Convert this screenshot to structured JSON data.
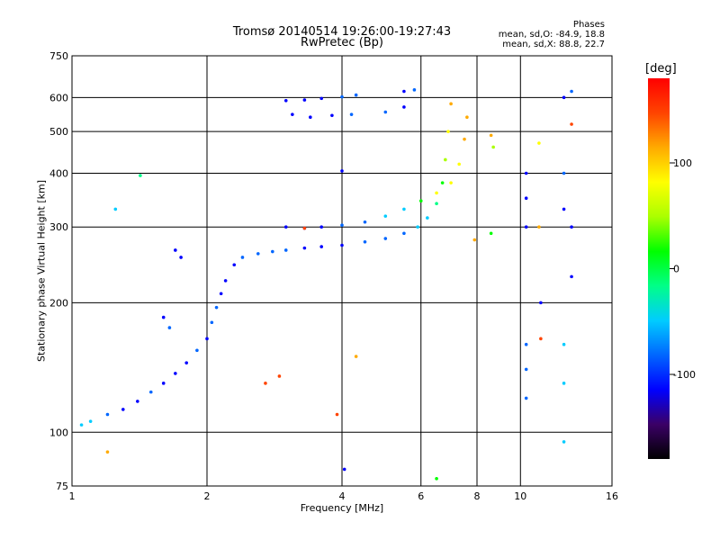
{
  "header": {
    "title": "Tromsø 20140514 19:26:00-19:27:43",
    "subtitle": "RwPretec (Bp)"
  },
  "phases": {
    "heading": "Phases",
    "line_o": "mean, sd,O: -84.9, 18.8",
    "line_x": "mean, sd,X: 88.8, 22.7"
  },
  "colorbar": {
    "label": "[deg]",
    "ticks": [
      "100",
      "0",
      "-100"
    ],
    "tick_values": [
      100,
      0,
      -100
    ],
    "range": [
      -180,
      180
    ],
    "colors": [
      "#000000",
      "#3b0066",
      "#0000ff",
      "#0066ff",
      "#00ccff",
      "#00ff88",
      "#00ff00",
      "#aaff00",
      "#ffff00",
      "#ffaa00",
      "#ff4400",
      "#ff0000"
    ]
  },
  "chart_data": {
    "type": "scatter",
    "title": "Tromsø 20140514 19:26:00-19:27:43",
    "subtitle": "RwPretec (Bp)",
    "xlabel": "Frequency [MHz]",
    "ylabel": "Stationary phase Virtual Height [km]",
    "xscale": "log",
    "yscale": "log",
    "xlim": [
      1,
      16
    ],
    "ylim": [
      75,
      750
    ],
    "xticks": [
      {
        "v": 1,
        "label": "1"
      },
      {
        "v": 2,
        "label": "2"
      },
      {
        "v": 4,
        "label": "4"
      },
      {
        "v": 6,
        "label": "6"
      },
      {
        "v": 8,
        "label": "8"
      },
      {
        "v": 10,
        "label": "10"
      },
      {
        "v": 16,
        "label": "16"
      }
    ],
    "yticks": [
      {
        "v": 75,
        "label": "75"
      },
      {
        "v": 100,
        "label": "100"
      },
      {
        "v": 200,
        "label": "200"
      },
      {
        "v": 300,
        "label": "300"
      },
      {
        "v": 400,
        "label": "400"
      },
      {
        "v": 500,
        "label": "500"
      },
      {
        "v": 600,
        "label": "600"
      },
      {
        "v": 750,
        "label": "750"
      }
    ],
    "grid": true,
    "color_scale": "phase [deg]",
    "series": [
      {
        "points": [
          [
            1.05,
            104,
            -60
          ],
          [
            1.1,
            106,
            -40
          ],
          [
            1.2,
            110,
            -90
          ],
          [
            1.3,
            113,
            -110
          ],
          [
            1.4,
            118,
            -100
          ],
          [
            1.5,
            124,
            -95
          ],
          [
            1.6,
            130,
            -100
          ],
          [
            1.7,
            137,
            -110
          ],
          [
            1.8,
            145,
            -100
          ],
          [
            1.9,
            155,
            -95
          ],
          [
            2.0,
            165,
            -100
          ],
          [
            2.05,
            180,
            -90
          ],
          [
            2.1,
            195,
            -95
          ],
          [
            2.15,
            210,
            -100
          ],
          [
            2.2,
            225,
            -105
          ],
          [
            2.3,
            245,
            -100
          ],
          [
            2.4,
            255,
            -90
          ],
          [
            2.6,
            260,
            -85
          ],
          [
            2.8,
            263,
            -80
          ],
          [
            3.0,
            265,
            -95
          ],
          [
            3.3,
            268,
            -100
          ],
          [
            3.6,
            270,
            -110
          ],
          [
            4.0,
            272,
            -100
          ],
          [
            4.5,
            277,
            -90
          ],
          [
            5.0,
            282,
            -80
          ],
          [
            5.5,
            290,
            -70
          ],
          [
            5.9,
            300,
            -60
          ],
          [
            6.2,
            315,
            -40
          ],
          [
            6.5,
            340,
            -10
          ],
          [
            6.7,
            380,
            30
          ],
          [
            6.8,
            430,
            60
          ],
          [
            6.9,
            500,
            90
          ],
          [
            7.0,
            580,
            100
          ]
        ]
      },
      {
        "points": [
          [
            3.0,
            300,
            -120
          ],
          [
            3.3,
            298,
            -110
          ],
          [
            3.6,
            300,
            -100
          ],
          [
            4.0,
            303,
            -90
          ],
          [
            4.5,
            308,
            -80
          ],
          [
            5.0,
            318,
            -60
          ],
          [
            5.5,
            330,
            -40
          ],
          [
            6.0,
            345,
            20
          ],
          [
            6.5,
            360,
            70
          ],
          [
            7.0,
            380,
            90
          ],
          [
            7.3,
            420,
            95
          ],
          [
            7.5,
            480,
            100
          ],
          [
            7.6,
            540,
            110
          ]
        ]
      },
      {
        "points": [
          [
            3.0,
            590,
            -110
          ],
          [
            3.3,
            592,
            -105
          ],
          [
            3.6,
            597,
            -100
          ],
          [
            4.0,
            602,
            -95
          ],
          [
            4.3,
            608,
            -90
          ],
          [
            5.5,
            620,
            -100
          ],
          [
            5.8,
            625,
            -95
          ]
        ]
      },
      {
        "points": [
          [
            3.1,
            548,
            -100
          ],
          [
            3.4,
            540,
            -110
          ],
          [
            3.8,
            545,
            -100
          ],
          [
            4.2,
            548,
            -90
          ],
          [
            5.0,
            555,
            -80
          ],
          [
            5.5,
            570,
            -100
          ]
        ]
      },
      {
        "points": [
          [
            1.2,
            90,
            130
          ],
          [
            1.25,
            330,
            -60
          ],
          [
            1.42,
            395,
            -30
          ],
          [
            1.6,
            185,
            -100
          ],
          [
            1.65,
            175,
            -90
          ],
          [
            1.7,
            265,
            -100
          ],
          [
            1.75,
            255,
            -100
          ],
          [
            2.7,
            130,
            160
          ],
          [
            2.9,
            135,
            150
          ],
          [
            3.3,
            298,
            160
          ],
          [
            4.0,
            405,
            -100
          ],
          [
            3.9,
            110,
            160
          ],
          [
            4.05,
            82,
            -130
          ],
          [
            4.3,
            150,
            110
          ],
          [
            6.5,
            78,
            0
          ],
          [
            7.9,
            280,
            100
          ],
          [
            8.6,
            490,
            120
          ],
          [
            8.6,
            290,
            30
          ],
          [
            8.7,
            460,
            40
          ],
          [
            10.3,
            400,
            -100
          ],
          [
            10.3,
            350,
            -110
          ],
          [
            10.3,
            300,
            -100
          ],
          [
            10.3,
            160,
            -90
          ],
          [
            10.3,
            140,
            -90
          ],
          [
            10.3,
            120,
            -70
          ],
          [
            11.0,
            470,
            80
          ],
          [
            11.0,
            300,
            110
          ],
          [
            11.1,
            200,
            -120
          ],
          [
            11.1,
            165,
            140
          ],
          [
            12.5,
            600,
            -100
          ],
          [
            12.5,
            400,
            -90
          ],
          [
            12.5,
            330,
            -100
          ],
          [
            12.5,
            160,
            -60
          ],
          [
            12.5,
            130,
            -60
          ],
          [
            12.5,
            95,
            -40
          ],
          [
            13.0,
            620,
            -90
          ],
          [
            13.0,
            520,
            140
          ],
          [
            13.0,
            300,
            -100
          ],
          [
            13.0,
            230,
            -120
          ]
        ]
      }
    ]
  }
}
